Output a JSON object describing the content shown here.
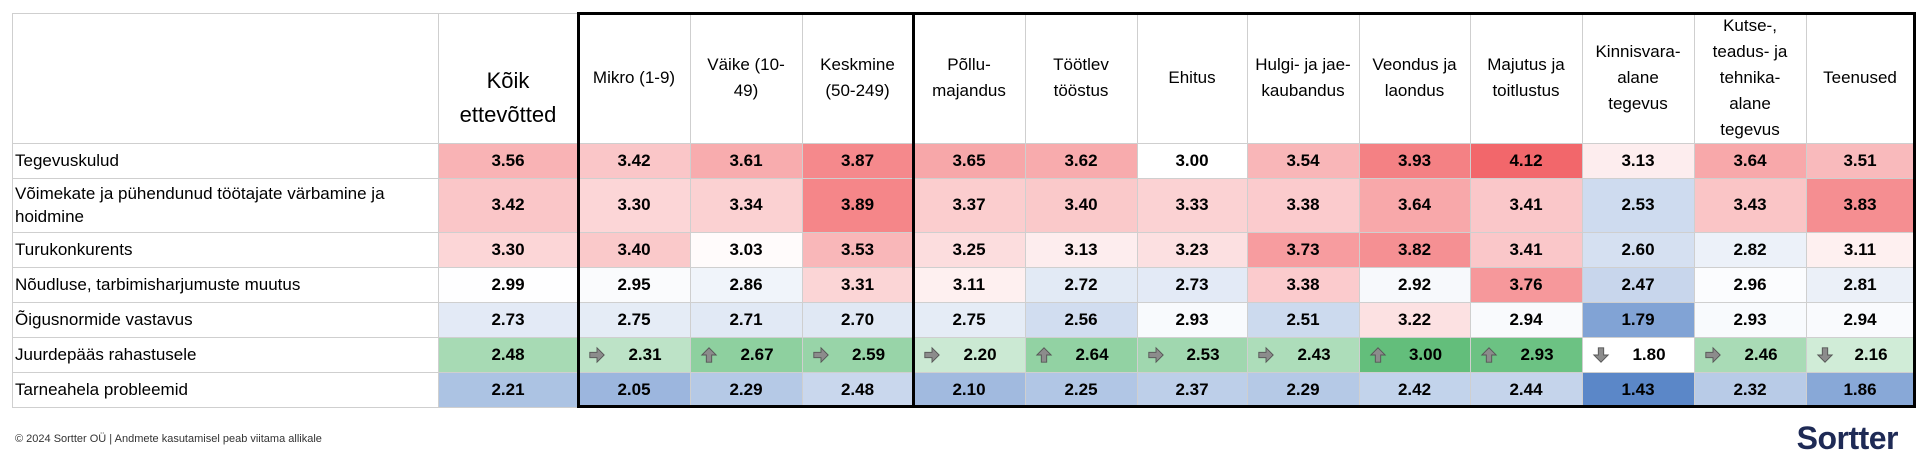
{
  "chart_data": {
    "type": "heatmap",
    "columns": [
      "Kõik\nettevõtted",
      "Mikro (1-9)",
      "Väike (10-\n49)",
      "Keskmine\n(50-249)",
      "Põllu-\nmajandus",
      "Töötlev\ntööstus",
      "Ehitus",
      "Hulgi- ja jae-\nkaubandus",
      "Veondus ja\nlaondus",
      "Majutus ja\ntoitlustus",
      "Kinnisvara-\nalane\ntegevus",
      "Kutse-,\nteadus- ja\ntehnika-\nalane\ntegevus",
      "Teenused"
    ],
    "rows": [
      {
        "label": "Tegevuskulud",
        "values": [
          3.56,
          3.42,
          3.61,
          3.87,
          3.65,
          3.62,
          3.0,
          3.54,
          3.93,
          4.12,
          3.13,
          3.64,
          3.51
        ]
      },
      {
        "label": "Võimekate ja pühendunud töötajate värbamine ja\nhoidmine",
        "values": [
          3.42,
          3.3,
          3.34,
          3.89,
          3.37,
          3.4,
          3.33,
          3.38,
          3.64,
          3.41,
          2.53,
          3.43,
          3.83
        ]
      },
      {
        "label": " Turukonkurents",
        "values": [
          3.3,
          3.4,
          3.03,
          3.53,
          3.25,
          3.13,
          3.23,
          3.73,
          3.82,
          3.41,
          2.6,
          2.82,
          3.11
        ]
      },
      {
        "label": " Nõudluse, tarbimisharjumuste muutus",
        "values": [
          2.99,
          2.95,
          2.86,
          3.31,
          3.11,
          2.72,
          2.73,
          3.38,
          2.92,
          3.76,
          2.47,
          2.96,
          2.81
        ]
      },
      {
        "label": " Õigusnormide vastavus",
        "values": [
          2.73,
          2.75,
          2.71,
          2.7,
          2.75,
          2.56,
          2.93,
          2.51,
          3.22,
          2.94,
          1.79,
          2.93,
          2.94
        ]
      },
      {
        "label": "Juurdepääs rahastusele",
        "values": [
          2.48,
          2.31,
          2.67,
          2.59,
          2.2,
          2.64,
          2.53,
          2.43,
          3.0,
          2.93,
          1.8,
          2.46,
          2.16
        ],
        "arrows": [
          null,
          "right",
          "up",
          "right",
          "right",
          "up",
          "right",
          "right",
          "up",
          "up",
          "down",
          "right",
          "down"
        ]
      },
      {
        "label": "Tarneahela probleemid",
        "values": [
          2.21,
          2.05,
          2.29,
          2.48,
          2.1,
          2.25,
          2.37,
          2.29,
          2.42,
          2.44,
          1.43,
          2.32,
          1.86
        ]
      }
    ],
    "scale": {
      "min": 1.43,
      "mid": 3.0,
      "max": 4.12,
      "low_color": "#5b87c8",
      "mid_color": "#ffffff",
      "high_color": "#f2676b"
    },
    "highlight_row_scale": {
      "min": 1.8,
      "max": 3.0,
      "low_color": "#ffffff",
      "high_color": "#63be7b"
    }
  },
  "footer": "© 2024 Sortter OÜ | Andmete kasutamisel peab viitama allikale",
  "logo": "Sortter"
}
